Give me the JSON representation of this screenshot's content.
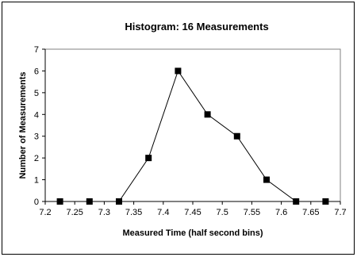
{
  "chart_data": {
    "type": "line",
    "title": "Histogram: 16 Measurements",
    "xlabel": "Measured Time (half  second bins)",
    "ylabel": "Number of Measurements",
    "xlim": [
      7.2,
      7.7
    ],
    "ylim": [
      0,
      7
    ],
    "x_ticks": [
      7.2,
      7.25,
      7.3,
      7.35,
      7.4,
      7.45,
      7.5,
      7.55,
      7.6,
      7.65,
      7.7
    ],
    "x_tick_labels": [
      "7.2",
      "7.25",
      "7.3",
      "7.35",
      "7.4",
      "7.45",
      "7.5",
      "7.55",
      "7.6",
      "7.65",
      "7.7"
    ],
    "y_ticks": [
      0,
      1,
      2,
      3,
      4,
      5,
      6,
      7
    ],
    "y_tick_labels": [
      "0",
      "1",
      "2",
      "3",
      "4",
      "5",
      "6",
      "7"
    ],
    "grid": false,
    "legend": "none",
    "marker": "square",
    "colors": {
      "line": "#000000",
      "marker": "#000000",
      "plot_border": "#808080"
    },
    "series": [
      {
        "x": [
          7.225,
          7.275,
          7.325,
          7.375,
          7.425,
          7.475,
          7.525,
          7.575,
          7.625,
          7.675
        ],
        "values": [
          0,
          0,
          0,
          2,
          6,
          4,
          3,
          1,
          0,
          0
        ]
      }
    ]
  }
}
